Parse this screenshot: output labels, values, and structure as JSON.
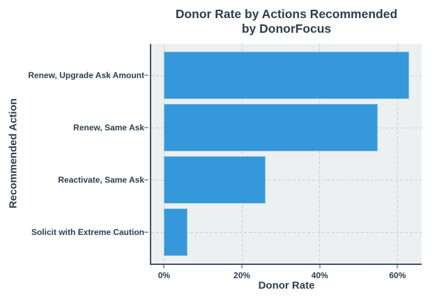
{
  "chart_data": {
    "type": "bar",
    "orientation": "horizontal",
    "title_lines": [
      "Donor Rate by Actions Recommended",
      "by DonorFocus"
    ],
    "xlabel": "Donor Rate",
    "ylabel": "Recommended Action",
    "categories": [
      "Renew, Upgrade Ask Amount",
      "Renew, Same Ask",
      "Reactivate, Same Ask",
      "Solicit with Extreme Caution"
    ],
    "values": [
      63,
      55,
      26,
      6
    ],
    "value_unit": "%",
    "x_ticks": {
      "values": [
        0,
        20,
        40,
        60
      ],
      "labels": [
        "0%",
        "20%",
        "40%",
        "60%"
      ]
    },
    "xlim": [
      0,
      66
    ],
    "grid": "dashed",
    "legend": "none",
    "colors": {
      "bar": "#3498db",
      "panel_bg": "#ecf0f1",
      "text": "#2c3e50",
      "grid": "#c7ced3",
      "spine": "#405266",
      "tick": "#98a2aa"
    }
  }
}
